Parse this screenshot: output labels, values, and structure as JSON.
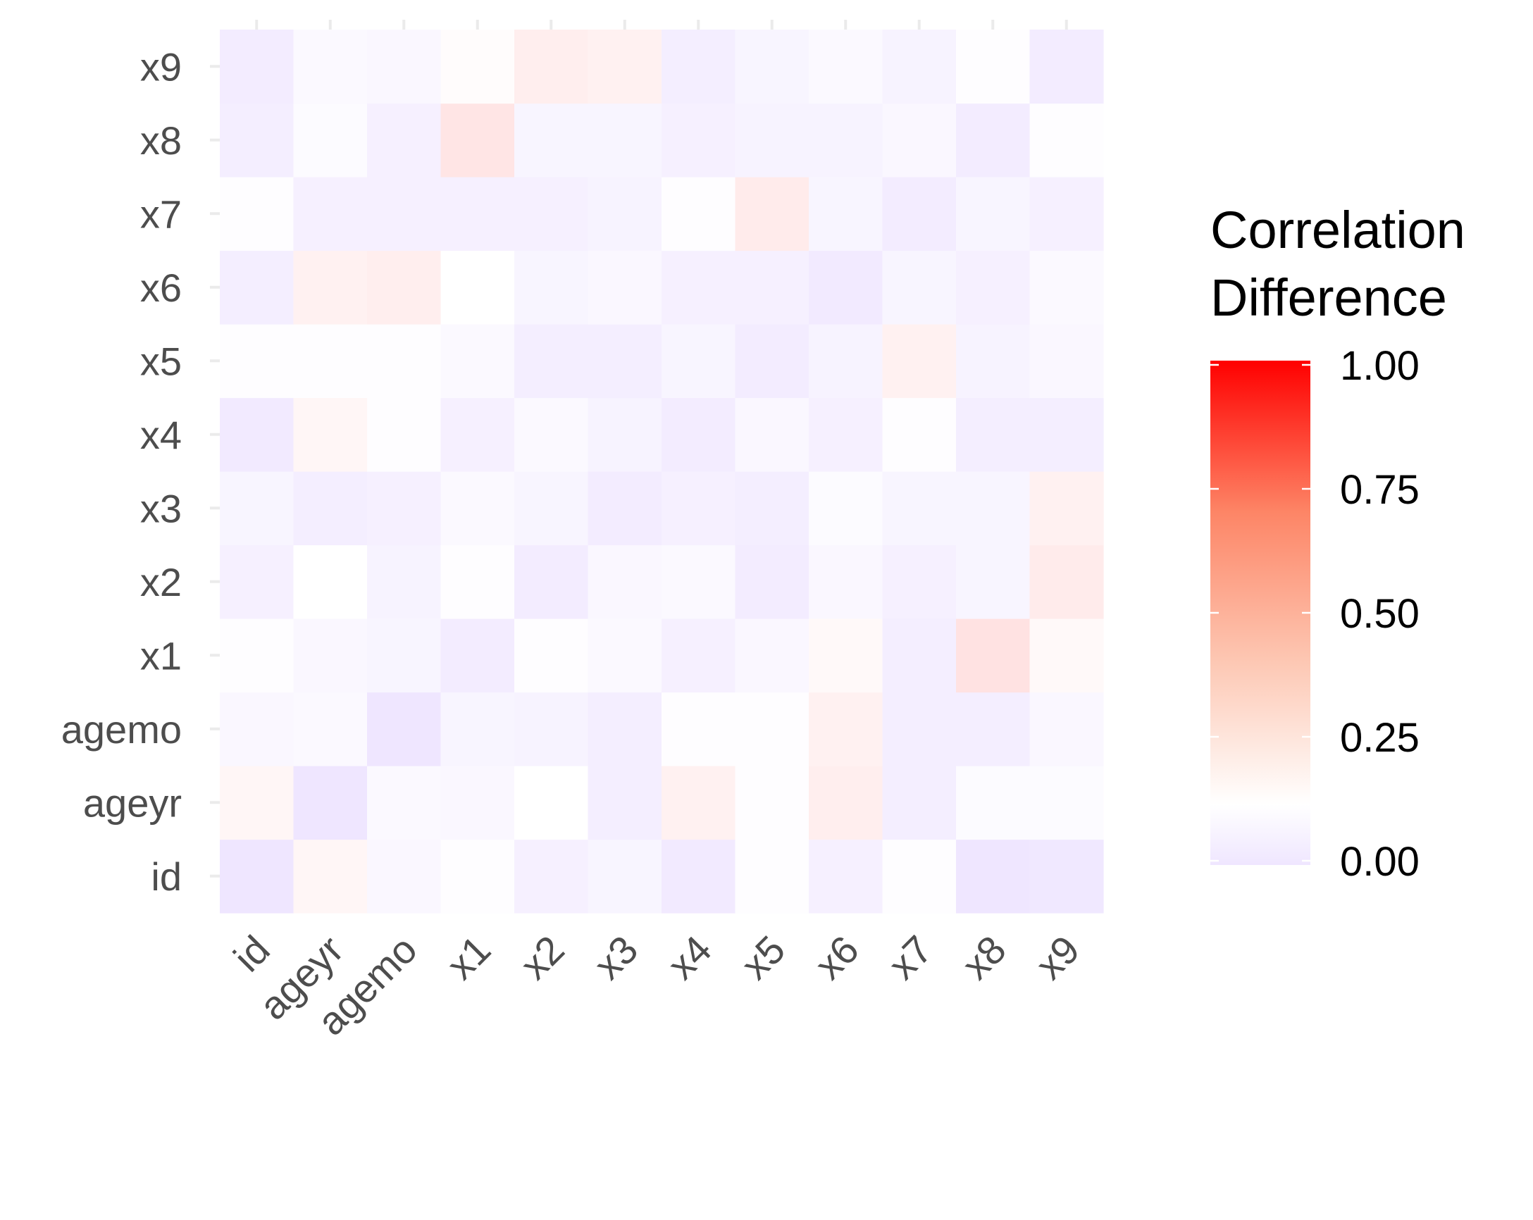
{
  "chart_data": {
    "type": "heatmap",
    "x_categories": [
      "id",
      "ageyr",
      "agemo",
      "x1",
      "x2",
      "x3",
      "x4",
      "x5",
      "x6",
      "x7",
      "x8",
      "x9"
    ],
    "y_categories": [
      "id",
      "ageyr",
      "agemo",
      "x1",
      "x2",
      "x3",
      "x4",
      "x5",
      "x6",
      "x7",
      "x8",
      "x9"
    ],
    "values": [
      [
        0.0,
        0.15,
        0.08,
        0.11,
        0.05,
        0.07,
        0.02,
        0.11,
        0.05,
        0.11,
        0.0,
        0.01
      ],
      [
        0.15,
        0.0,
        0.09,
        0.08,
        0.12,
        0.04,
        0.17,
        0.11,
        0.18,
        0.04,
        0.1,
        0.1
      ],
      [
        0.08,
        0.09,
        0.0,
        0.07,
        0.06,
        0.04,
        0.11,
        0.11,
        0.17,
        0.04,
        0.04,
        0.08
      ],
      [
        0.11,
        0.08,
        0.07,
        0.03,
        0.11,
        0.09,
        0.05,
        0.08,
        0.14,
        0.04,
        0.22,
        0.14
      ],
      [
        0.05,
        0.12,
        0.06,
        0.11,
        0.03,
        0.08,
        0.09,
        0.03,
        0.08,
        0.05,
        0.07,
        0.19
      ],
      [
        0.07,
        0.04,
        0.05,
        0.09,
        0.07,
        0.03,
        0.05,
        0.04,
        0.1,
        0.07,
        0.07,
        0.17
      ],
      [
        0.02,
        0.15,
        0.11,
        0.05,
        0.09,
        0.06,
        0.03,
        0.08,
        0.05,
        0.11,
        0.04,
        0.04
      ],
      [
        0.11,
        0.11,
        0.11,
        0.09,
        0.04,
        0.04,
        0.07,
        0.03,
        0.06,
        0.17,
        0.06,
        0.08
      ],
      [
        0.04,
        0.17,
        0.18,
        0.12,
        0.07,
        0.08,
        0.05,
        0.05,
        0.02,
        0.07,
        0.05,
        0.09
      ],
      [
        0.11,
        0.05,
        0.05,
        0.05,
        0.05,
        0.06,
        0.11,
        0.19,
        0.07,
        0.03,
        0.07,
        0.05
      ],
      [
        0.04,
        0.1,
        0.05,
        0.21,
        0.07,
        0.07,
        0.05,
        0.06,
        0.06,
        0.08,
        0.03,
        0.11
      ],
      [
        0.03,
        0.09,
        0.08,
        0.13,
        0.18,
        0.17,
        0.04,
        0.07,
        0.09,
        0.06,
        0.11,
        0.03
      ]
    ],
    "legend": {
      "title_lines": [
        "Correlation",
        "Difference"
      ],
      "ticks": [
        "1.00",
        "0.75",
        "0.50",
        "0.25",
        "0.00"
      ],
      "tick_values": [
        1.0,
        0.75,
        0.5,
        0.25,
        0.0
      ],
      "range": [
        0.0,
        1.0
      ],
      "placement": "right"
    },
    "color_scale": {
      "low": "#efe6ff",
      "mid": "#ffffff",
      "high": "#ff0000",
      "midpoint": 0.12
    },
    "grid": true,
    "title": "",
    "xlabel": "",
    "ylabel": ""
  }
}
